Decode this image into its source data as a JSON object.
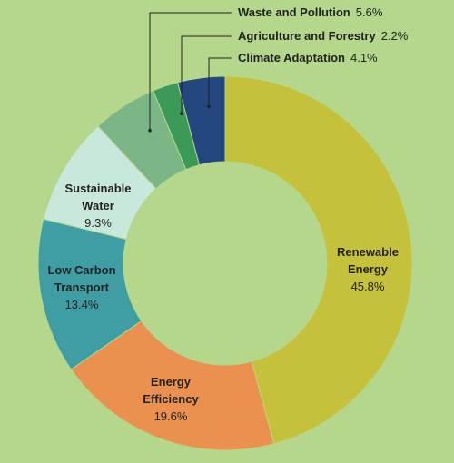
{
  "chart_data": {
    "type": "donut",
    "categories": [
      "Renewable Energy",
      "Energy Efficiency",
      "Low Carbon Transport",
      "Sustainable Water",
      "Waste and Pollution",
      "Agriculture and Forestry",
      "Climate Adaptation"
    ],
    "values": [
      45.8,
      19.6,
      13.4,
      9.3,
      5.6,
      2.2,
      4.1
    ],
    "value_labels": [
      "45.8%",
      "19.6%",
      "13.4%",
      "9.3%",
      "5.6%",
      "2.2%",
      "4.1%"
    ],
    "colors": [
      "#c6c13b",
      "#ea9150",
      "#3f9ea3",
      "#c9e8dc",
      "#7cb687",
      "#3b9a58",
      "#244780"
    ]
  }
}
